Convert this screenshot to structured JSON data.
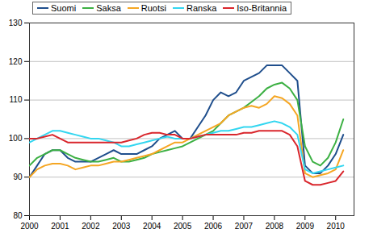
{
  "chart_data": {
    "type": "line",
    "legend": "top",
    "grid": true,
    "xlim": [
      2000,
      2010.6
    ],
    "xticks": [
      2000,
      2001,
      2002,
      2003,
      2004,
      2005,
      2006,
      2007,
      2008,
      2009,
      2010
    ],
    "ylim": [
      80,
      130
    ],
    "yticks": [
      80,
      90,
      100,
      110,
      120,
      130
    ],
    "x": [
      2000,
      2000.25,
      2000.5,
      2000.75,
      2001,
      2001.25,
      2001.5,
      2001.75,
      2002,
      2002.25,
      2002.5,
      2002.75,
      2003,
      2003.25,
      2003.5,
      2003.75,
      2004,
      2004.25,
      2004.5,
      2004.75,
      2005,
      2005.25,
      2005.5,
      2005.75,
      2006,
      2006.25,
      2006.5,
      2006.75,
      2007,
      2007.25,
      2007.5,
      2007.75,
      2008,
      2008.25,
      2008.5,
      2008.75,
      2009,
      2009.25,
      2009.5,
      2009.75,
      2010,
      2010.25
    ],
    "series": [
      {
        "name": "Suomi",
        "color": "#1f4e8c",
        "values": [
          90,
          93,
          96,
          97,
          97,
          95,
          94,
          94,
          94,
          95,
          96,
          97,
          96,
          96,
          96,
          97,
          98,
          100,
          101,
          102,
          100,
          100,
          103,
          106,
          110,
          112,
          111,
          112,
          115,
          116,
          117,
          119,
          119,
          119,
          117,
          115,
          93,
          91,
          91,
          93,
          96,
          101
        ]
      },
      {
        "name": "Saksa",
        "color": "#3cb043",
        "values": [
          93,
          95,
          96,
          97,
          97,
          96,
          95,
          94.5,
          94,
          94,
          94.5,
          95,
          94,
          94,
          94.5,
          95,
          96,
          96.5,
          97,
          97.5,
          98,
          99,
          100,
          101,
          102,
          104,
          106,
          107,
          108,
          109.5,
          111,
          113,
          114,
          114.5,
          113,
          110,
          98,
          94,
          93,
          95,
          99,
          105
        ]
      },
      {
        "name": "Ruotsi",
        "color": "#f5a623",
        "values": [
          90,
          92,
          93,
          93.5,
          93.5,
          93,
          92,
          92.5,
          93,
          93,
          93.5,
          94,
          94,
          94.5,
          95,
          95.5,
          96,
          97,
          98,
          99,
          99,
          100,
          101,
          102,
          103,
          104,
          106,
          107,
          108,
          108.5,
          108,
          109,
          111,
          110.5,
          109,
          106,
          91,
          90,
          90.5,
          91,
          92,
          97
        ]
      },
      {
        "name": "Ranska",
        "color": "#33d6f0",
        "values": [
          99,
          100,
          101,
          102,
          102,
          101.5,
          101,
          100.5,
          100,
          100,
          99.5,
          99,
          98,
          98,
          98.5,
          99,
          99.5,
          100,
          100.5,
          100,
          100,
          100,
          100.5,
          101,
          101.5,
          102,
          102,
          102.5,
          103,
          103,
          103.5,
          104,
          104.5,
          104,
          103,
          101,
          92,
          91,
          91.5,
          92,
          92.5,
          93
        ]
      },
      {
        "name": "Iso-Britannia",
        "color": "#d9262c",
        "values": [
          100,
          100,
          100.5,
          101,
          100,
          99,
          99,
          99,
          99,
          99,
          99,
          99,
          99,
          99.5,
          100,
          101,
          101.5,
          101.5,
          101,
          101,
          100,
          100,
          100.5,
          101,
          101,
          101,
          101,
          101,
          101.5,
          101.5,
          102,
          102,
          102,
          102,
          101,
          98,
          89,
          88,
          88,
          88.5,
          89,
          91.5
        ]
      }
    ]
  }
}
